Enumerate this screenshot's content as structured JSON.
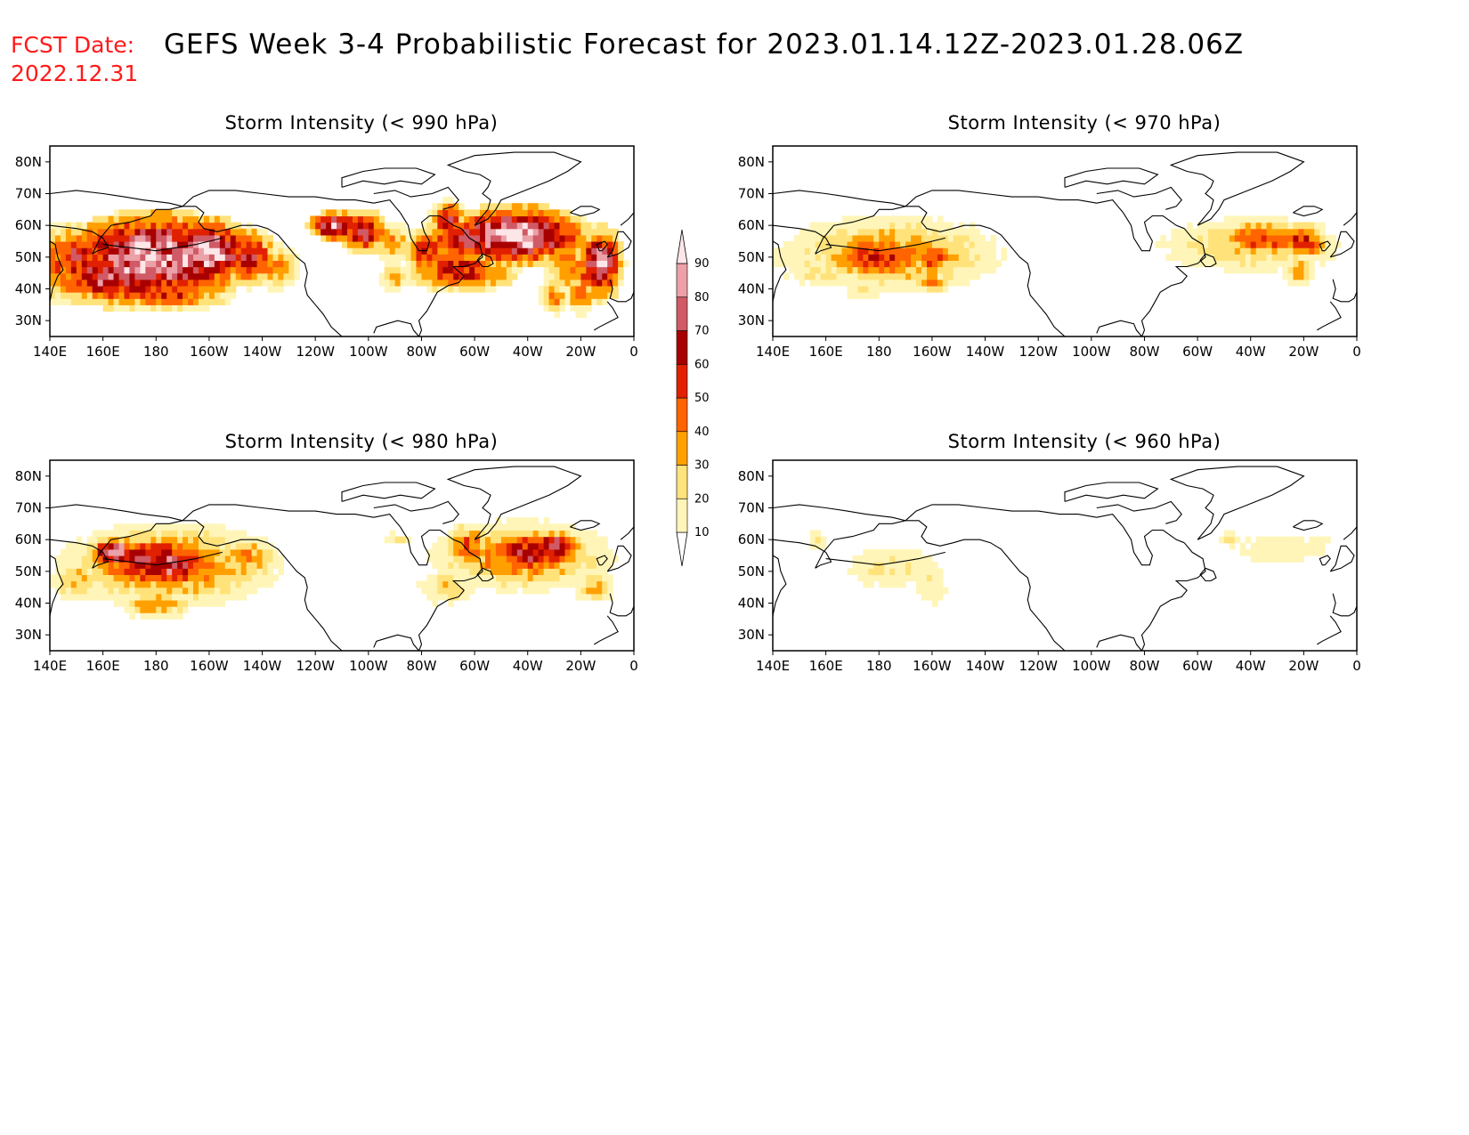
{
  "header": {
    "fcst_label": "FCST Date:",
    "fcst_date": "2022.12.31",
    "title": "GEFS Week 3-4 Probabilistic Forecast for 2023.01.14.12Z-2023.01.28.06Z"
  },
  "axes": {
    "lon_ticks": [
      140,
      160,
      180,
      200,
      220,
      240,
      260,
      280,
      300,
      320,
      340,
      360
    ],
    "lon_labels": [
      "140E",
      "160E",
      "180",
      "160W",
      "140W",
      "120W",
      "100W",
      "80W",
      "60W",
      "40W",
      "20W",
      "0"
    ],
    "lat_ticks": [
      30,
      40,
      50,
      60,
      70,
      80
    ],
    "lat_labels": [
      "30N",
      "40N",
      "50N",
      "60N",
      "70N",
      "80N"
    ],
    "lon_range": [
      140,
      360
    ],
    "lat_range": [
      25,
      85
    ]
  },
  "colorbar": {
    "levels": [
      10,
      20,
      30,
      40,
      50,
      60,
      70,
      80,
      90
    ],
    "labels": [
      "10",
      "20",
      "30",
      "40",
      "50",
      "60",
      "70",
      "80",
      "90"
    ],
    "colors": [
      "#ffffff",
      "#fff5b8",
      "#ffe27a",
      "#ffa000",
      "#ff6400",
      "#e02000",
      "#a80000",
      "#d05a66",
      "#eca0a8",
      "#fde6e8"
    ]
  },
  "coastline_color": "#000000",
  "panels": [
    {
      "id": "990",
      "title": "Storm Intensity (< 990 hPa)",
      "blobs": [
        {
          "lon": 180,
          "lat": 50,
          "rlon": 32,
          "rlat": 12,
          "v": 90
        },
        {
          "lon": 200,
          "lat": 52,
          "rlon": 14,
          "rlat": 9,
          "v": 92
        },
        {
          "lon": 170,
          "lat": 45,
          "rlon": 30,
          "rlat": 9,
          "v": 80
        },
        {
          "lon": 160,
          "lat": 42,
          "rlon": 12,
          "rlat": 5,
          "v": 70
        },
        {
          "lon": 150,
          "lat": 50,
          "rlon": 9,
          "rlat": 9,
          "v": 62
        },
        {
          "lon": 143,
          "lat": 48,
          "rlon": 7,
          "rlat": 10,
          "v": 48
        },
        {
          "lon": 185,
          "lat": 38,
          "rlon": 20,
          "rlat": 4,
          "v": 55
        },
        {
          "lon": 215,
          "lat": 50,
          "rlon": 9,
          "rlat": 8,
          "v": 66
        },
        {
          "lon": 225,
          "lat": 47,
          "rlon": 8,
          "rlat": 6,
          "v": 40
        },
        {
          "lon": 248,
          "lat": 60,
          "rlon": 9,
          "rlat": 4,
          "v": 88
        },
        {
          "lon": 258,
          "lat": 58,
          "rlon": 8,
          "rlat": 6,
          "v": 68
        },
        {
          "lon": 268,
          "lat": 55,
          "rlon": 8,
          "rlat": 5,
          "v": 40
        },
        {
          "lon": 282,
          "lat": 52,
          "rlon": 7,
          "rlat": 6,
          "v": 62
        },
        {
          "lon": 270,
          "lat": 44,
          "rlon": 5,
          "rlat": 4,
          "v": 35
        },
        {
          "lon": 300,
          "lat": 56,
          "rlon": 18,
          "rlat": 7,
          "v": 70
        },
        {
          "lon": 315,
          "lat": 57,
          "rlon": 24,
          "rlat": 8,
          "v": 92
        },
        {
          "lon": 295,
          "lat": 46,
          "rlon": 18,
          "rlat": 6,
          "v": 62
        },
        {
          "lon": 290,
          "lat": 62,
          "rlon": 6,
          "rlat": 5,
          "v": 66
        },
        {
          "lon": 335,
          "lat": 48,
          "rlon": 7,
          "rlat": 8,
          "v": 45
        },
        {
          "lon": 347,
          "lat": 48,
          "rlon": 8,
          "rlat": 10,
          "v": 80
        },
        {
          "lon": 330,
          "lat": 38,
          "rlon": 5,
          "rlat": 5,
          "v": 40
        },
        {
          "lon": 340,
          "lat": 38,
          "rlon": 5,
          "rlat": 5,
          "v": 45
        }
      ]
    },
    {
      "id": "970",
      "title": "Storm Intensity (< 970 hPa)",
      "blobs": [
        {
          "lon": 185,
          "lat": 51,
          "rlon": 34,
          "rlat": 10,
          "v": 40
        },
        {
          "lon": 180,
          "lat": 50,
          "rlon": 18,
          "rlat": 6,
          "v": 60
        },
        {
          "lon": 200,
          "lat": 50,
          "rlon": 10,
          "rlat": 5,
          "v": 48
        },
        {
          "lon": 160,
          "lat": 45,
          "rlon": 16,
          "rlat": 4,
          "v": 22
        },
        {
          "lon": 145,
          "lat": 50,
          "rlon": 6,
          "rlat": 4,
          "v": 20
        },
        {
          "lon": 175,
          "lat": 41,
          "rlon": 10,
          "rlat": 4,
          "v": 22
        },
        {
          "lon": 200,
          "lat": 42,
          "rlon": 6,
          "rlat": 3,
          "v": 45
        },
        {
          "lon": 320,
          "lat": 54,
          "rlon": 30,
          "rlat": 8,
          "v": 30
        },
        {
          "lon": 325,
          "lat": 56,
          "rlon": 16,
          "rlat": 5,
          "v": 52
        },
        {
          "lon": 340,
          "lat": 55,
          "rlon": 8,
          "rlat": 5,
          "v": 58
        },
        {
          "lon": 300,
          "lat": 54,
          "rlon": 10,
          "rlat": 5,
          "v": 22
        },
        {
          "lon": 338,
          "lat": 46,
          "rlon": 6,
          "rlat": 4,
          "v": 35
        }
      ]
    },
    {
      "id": "980",
      "title": "Storm Intensity (< 980 hPa)",
      "blobs": [
        {
          "lon": 185,
          "lat": 52,
          "rlon": 34,
          "rlat": 11,
          "v": 45
        },
        {
          "lon": 180,
          "lat": 53,
          "rlon": 24,
          "rlat": 8,
          "v": 66
        },
        {
          "lon": 185,
          "lat": 52,
          "rlon": 12,
          "rlat": 6,
          "v": 80
        },
        {
          "lon": 165,
          "lat": 56,
          "rlon": 8,
          "rlat": 4,
          "v": 90
        },
        {
          "lon": 150,
          "lat": 47,
          "rlon": 8,
          "rlat": 5,
          "v": 35
        },
        {
          "lon": 180,
          "lat": 40,
          "rlon": 12,
          "rlat": 4,
          "v": 40
        },
        {
          "lon": 215,
          "lat": 54,
          "rlon": 9,
          "rlat": 6,
          "v": 40
        },
        {
          "lon": 318,
          "lat": 55,
          "rlon": 28,
          "rlat": 9,
          "v": 45
        },
        {
          "lon": 320,
          "lat": 56,
          "rlon": 18,
          "rlat": 6,
          "v": 66
        },
        {
          "lon": 330,
          "lat": 58,
          "rlon": 8,
          "rlat": 4,
          "v": 80
        },
        {
          "lon": 298,
          "lat": 58,
          "rlon": 8,
          "rlat": 6,
          "v": 50
        },
        {
          "lon": 290,
          "lat": 45,
          "rlon": 10,
          "rlat": 5,
          "v": 28
        },
        {
          "lon": 270,
          "lat": 60,
          "rlon": 5,
          "rlat": 2,
          "v": 25
        },
        {
          "lon": 345,
          "lat": 45,
          "rlon": 6,
          "rlat": 4,
          "v": 38
        }
      ]
    },
    {
      "id": "960",
      "title": "Storm Intensity (< 960 hPa)",
      "blobs": [
        {
          "lon": 185,
          "lat": 51,
          "rlon": 18,
          "rlat": 7,
          "v": 20
        },
        {
          "lon": 180,
          "lat": 51,
          "rlon": 6,
          "rlat": 3,
          "v": 30
        },
        {
          "lon": 200,
          "lat": 46,
          "rlon": 6,
          "rlat": 8,
          "v": 18
        },
        {
          "lon": 156,
          "lat": 60,
          "rlon": 4,
          "rlat": 4,
          "v": 18
        },
        {
          "lon": 330,
          "lat": 57,
          "rlon": 16,
          "rlat": 5,
          "v": 18
        },
        {
          "lon": 345,
          "lat": 58,
          "rlon": 6,
          "rlat": 4,
          "v": 18
        },
        {
          "lon": 312,
          "lat": 60,
          "rlon": 4,
          "rlat": 2,
          "v": 25
        }
      ]
    }
  ]
}
